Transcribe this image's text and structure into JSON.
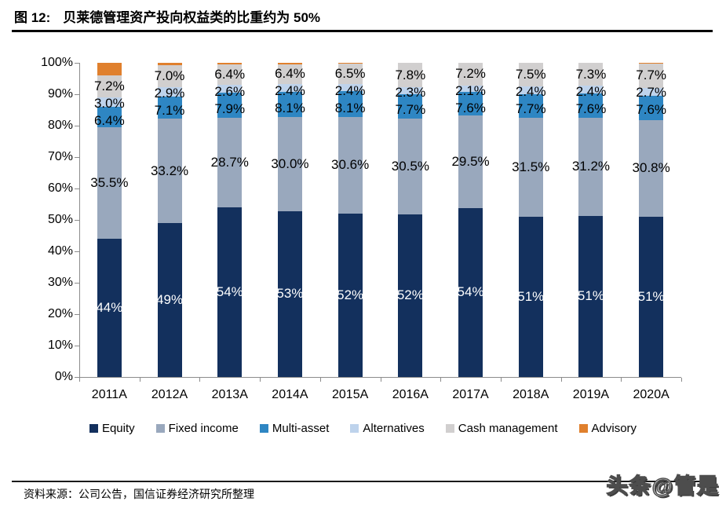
{
  "title": {
    "tag": "图 12:",
    "text": "贝莱德管理资产投向权益类的比重约为 50%"
  },
  "chart_data": {
    "type": "bar",
    "stacked": true,
    "unit": "percent",
    "categories": [
      "2011A",
      "2012A",
      "2013A",
      "2014A",
      "2015A",
      "2016A",
      "2017A",
      "2018A",
      "2019A",
      "2020A"
    ],
    "series": [
      {
        "name": "Equity",
        "color": "#13305D",
        "label_color": "#FFFFFF",
        "label_style": "inside-center",
        "values": [
          44,
          49,
          54,
          53,
          52,
          52,
          54,
          51,
          51,
          51
        ],
        "labels": [
          "44%",
          "49%",
          "54%",
          "53%",
          "52%",
          "52%",
          "54%",
          "51%",
          "51%",
          "51%"
        ]
      },
      {
        "name": "Fixed income",
        "color": "#99A8BD",
        "label_color": "#000000",
        "label_style": "inside-center",
        "values": [
          35.5,
          33.2,
          28.7,
          30.0,
          30.6,
          30.5,
          29.5,
          31.5,
          31.2,
          30.8
        ],
        "labels": [
          "35.5%",
          "33.2%",
          "28.7%",
          "30.0%",
          "30.6%",
          "30.5%",
          "29.5%",
          "31.5%",
          "31.2%",
          "30.8%"
        ]
      },
      {
        "name": "Multi-asset",
        "color": "#2E86C3",
        "label_color": "#000000",
        "label_style": "cluster",
        "values": [
          6.4,
          7.1,
          7.9,
          8.1,
          8.1,
          7.7,
          7.6,
          7.7,
          7.6,
          7.6
        ],
        "labels": [
          "6.4%",
          "7.1%",
          "7.9%",
          "8.1%",
          "8.1%",
          "7.7%",
          "7.6%",
          "7.7%",
          "7.6%",
          "7.6%"
        ]
      },
      {
        "name": "Alternatives",
        "color": "#BED3EC",
        "label_color": "#000000",
        "label_style": "cluster",
        "values": [
          3.0,
          2.9,
          2.6,
          2.4,
          2.4,
          2.3,
          2.1,
          2.4,
          2.4,
          2.7
        ],
        "labels": [
          "3.0%",
          "2.9%",
          "2.6%",
          "2.4%",
          "2.4%",
          "2.3%",
          "2.1%",
          "2.4%",
          "2.4%",
          "2.7%"
        ]
      },
      {
        "name": "Cash management",
        "color": "#D1CFCF",
        "label_color": "#000000",
        "label_style": "cluster",
        "values": [
          7.2,
          7.0,
          6.4,
          6.4,
          6.5,
          7.8,
          7.2,
          7.5,
          7.3,
          7.7
        ],
        "labels": [
          "7.2%",
          "7.0%",
          "6.4%",
          "6.4%",
          "6.5%",
          "7.8%",
          "7.2%",
          "7.5%",
          "7.3%",
          "7.7%"
        ]
      },
      {
        "name": "Advisory",
        "color": "#E0802D",
        "label_style": "none",
        "values": [
          3.9,
          0.8,
          0.5,
          0.4,
          0.2,
          0,
          0,
          0,
          0,
          0.2
        ],
        "labels": []
      }
    ],
    "y_axis": {
      "min": 0,
      "max": 100,
      "ticks": [
        "0%",
        "10%",
        "20%",
        "30%",
        "40%",
        "50%",
        "60%",
        "70%",
        "80%",
        "90%",
        "100%"
      ]
    },
    "grid": false,
    "legend_position": "bottom"
  },
  "footer": {
    "source": "资料来源：公司公告，国信证券经济研究所整理",
    "watermark": "头条@管是"
  }
}
